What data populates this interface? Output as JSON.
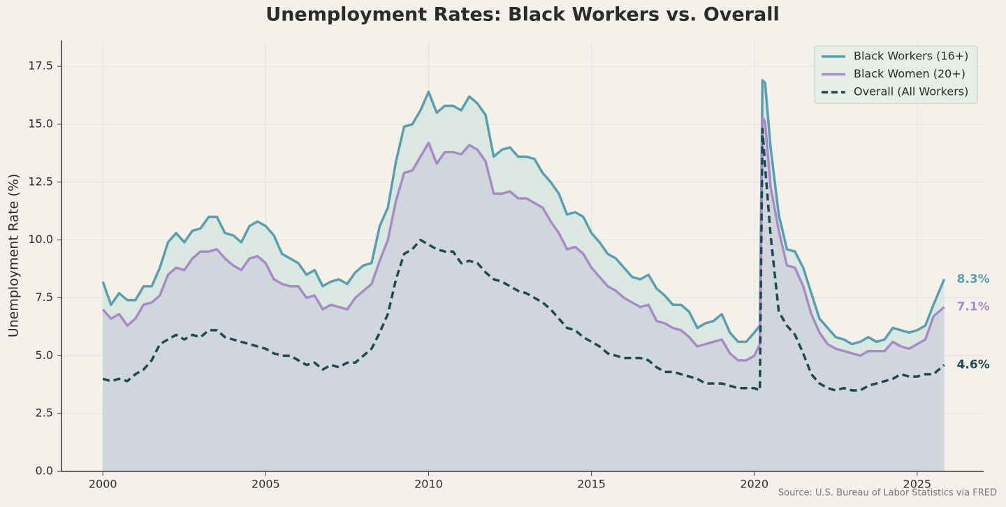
{
  "chart_data": {
    "type": "line",
    "title": "Unemployment Rates: Black Workers vs. Overall",
    "y_label": "Unemployment Rate (%)",
    "source": "Source: U.S. Bureau of Labor Statistics via FRED",
    "x": [
      2000,
      2000.25,
      2000.5,
      2000.75,
      2001,
      2001.25,
      2001.5,
      2001.75,
      2002,
      2002.25,
      2002.5,
      2002.75,
      2003,
      2003.25,
      2003.5,
      2003.75,
      2004,
      2004.25,
      2004.5,
      2004.75,
      2005,
      2005.25,
      2005.5,
      2005.75,
      2006,
      2006.25,
      2006.5,
      2006.75,
      2007,
      2007.25,
      2007.5,
      2007.75,
      2008,
      2008.25,
      2008.5,
      2008.75,
      2009,
      2009.25,
      2009.5,
      2009.75,
      2010,
      2010.25,
      2010.5,
      2010.75,
      2011,
      2011.25,
      2011.5,
      2011.75,
      2012,
      2012.25,
      2012.5,
      2012.75,
      2013,
      2013.25,
      2013.5,
      2013.75,
      2014,
      2014.25,
      2014.5,
      2014.75,
      2015,
      2015.25,
      2015.5,
      2015.75,
      2016,
      2016.25,
      2016.5,
      2016.75,
      2017,
      2017.25,
      2017.5,
      2017.75,
      2018,
      2018.25,
      2018.5,
      2018.75,
      2019,
      2019.25,
      2019.5,
      2019.75,
      2020,
      2020.17,
      2020.25,
      2020.33,
      2020.5,
      2020.75,
      2021,
      2021.25,
      2021.5,
      2021.75,
      2022,
      2022.25,
      2022.5,
      2022.75,
      2023,
      2023.25,
      2023.5,
      2023.75,
      2024,
      2024.25,
      2024.5,
      2024.75,
      2025,
      2025.25,
      2025.5,
      2025.83
    ],
    "series": [
      {
        "name": "Black Workers (16+)",
        "color": "#5a9fb0",
        "fill_color": "#dbe7e1",
        "linestyle": "solid",
        "end_label": "8.3%",
        "values": [
          8.2,
          7.2,
          7.7,
          7.4,
          7.4,
          8.0,
          8.0,
          8.8,
          9.9,
          10.3,
          9.9,
          10.4,
          10.5,
          11.0,
          11.0,
          10.3,
          10.2,
          9.9,
          10.6,
          10.8,
          10.6,
          10.2,
          9.4,
          9.2,
          9.0,
          8.5,
          8.7,
          8.0,
          8.2,
          8.3,
          8.1,
          8.6,
          8.9,
          9.0,
          10.6,
          11.4,
          13.4,
          14.9,
          15.0,
          15.6,
          16.4,
          15.5,
          15.8,
          15.8,
          15.6,
          16.2,
          15.9,
          15.4,
          13.6,
          13.9,
          14.0,
          13.6,
          13.6,
          13.5,
          12.9,
          12.5,
          12.0,
          11.1,
          11.2,
          11.0,
          10.3,
          9.9,
          9.4,
          9.2,
          8.8,
          8.4,
          8.3,
          8.5,
          7.9,
          7.6,
          7.2,
          7.2,
          6.9,
          6.2,
          6.4,
          6.5,
          6.8,
          6.0,
          5.6,
          5.6,
          6.0,
          6.3,
          16.9,
          16.8,
          14.0,
          11.1,
          9.6,
          9.5,
          8.8,
          7.7,
          6.6,
          6.2,
          5.8,
          5.7,
          5.5,
          5.6,
          5.8,
          5.6,
          5.7,
          6.2,
          6.1,
          6.0,
          6.1,
          6.3,
          7.2,
          8.3
        ]
      },
      {
        "name": "Black Women (20+)",
        "color": "#a98ac9",
        "fill_color": "#d1d5dc",
        "linestyle": "solid",
        "end_label": "7.1%",
        "values": [
          7.0,
          6.6,
          6.8,
          6.3,
          6.6,
          7.2,
          7.3,
          7.6,
          8.5,
          8.8,
          8.7,
          9.2,
          9.5,
          9.5,
          9.6,
          9.2,
          8.9,
          8.7,
          9.2,
          9.3,
          9.0,
          8.3,
          8.1,
          8.0,
          8.0,
          7.5,
          7.6,
          7.0,
          7.2,
          7.1,
          7.0,
          7.5,
          7.8,
          8.1,
          9.1,
          10.0,
          11.7,
          12.9,
          13.0,
          13.6,
          14.2,
          13.3,
          13.8,
          13.8,
          13.7,
          14.1,
          13.9,
          13.4,
          12.0,
          12.0,
          12.1,
          11.8,
          11.8,
          11.6,
          11.4,
          10.8,
          10.3,
          9.6,
          9.7,
          9.4,
          8.8,
          8.4,
          8.0,
          7.8,
          7.5,
          7.3,
          7.1,
          7.2,
          6.5,
          6.4,
          6.2,
          6.1,
          5.8,
          5.4,
          5.5,
          5.6,
          5.7,
          5.1,
          4.8,
          4.8,
          5.0,
          5.5,
          15.3,
          15.1,
          12.3,
          10.4,
          8.9,
          8.8,
          8.0,
          6.8,
          6.0,
          5.5,
          5.3,
          5.2,
          5.1,
          5.0,
          5.2,
          5.2,
          5.2,
          5.6,
          5.4,
          5.3,
          5.5,
          5.7,
          6.7,
          7.1
        ]
      },
      {
        "name": "Overall (All Workers)",
        "color": "#1b4a55",
        "linestyle": "dashed",
        "end_label": "4.6%",
        "values": [
          4.0,
          3.9,
          4.0,
          3.9,
          4.2,
          4.4,
          4.8,
          5.5,
          5.7,
          5.9,
          5.7,
          5.9,
          5.8,
          6.1,
          6.1,
          5.8,
          5.7,
          5.6,
          5.5,
          5.4,
          5.3,
          5.1,
          5.0,
          5.0,
          4.8,
          4.6,
          4.7,
          4.4,
          4.6,
          4.5,
          4.7,
          4.7,
          5.0,
          5.3,
          6.0,
          6.8,
          8.3,
          9.4,
          9.6,
          10.0,
          9.8,
          9.6,
          9.5,
          9.5,
          9.0,
          9.1,
          9.0,
          8.6,
          8.3,
          8.2,
          8.0,
          7.8,
          7.7,
          7.5,
          7.3,
          7.0,
          6.6,
          6.2,
          6.1,
          5.8,
          5.6,
          5.4,
          5.1,
          5.0,
          4.9,
          4.9,
          4.9,
          4.8,
          4.5,
          4.3,
          4.3,
          4.2,
          4.1,
          4.0,
          3.8,
          3.8,
          3.8,
          3.7,
          3.6,
          3.6,
          3.6,
          3.5,
          14.8,
          13.2,
          10.2,
          6.9,
          6.3,
          5.9,
          5.1,
          4.2,
          3.8,
          3.6,
          3.5,
          3.6,
          3.5,
          3.5,
          3.7,
          3.8,
          3.9,
          4.0,
          4.2,
          4.1,
          4.1,
          4.2,
          4.2,
          4.6
        ]
      }
    ],
    "xlim": [
      1998.73,
      2027.04
    ],
    "xticks": [
      2000,
      2005,
      2010,
      2015,
      2020,
      2025
    ],
    "ylim": [
      0,
      18.62
    ],
    "yticks": [
      {
        "value": 0,
        "label": "0.0"
      },
      {
        "value": 2.5,
        "label": "2.5"
      },
      {
        "value": 5,
        "label": "5.0"
      },
      {
        "value": 7.5,
        "label": "7.5"
      },
      {
        "value": 10,
        "label": "10.0"
      },
      {
        "value": 12.5,
        "label": "12.5"
      },
      {
        "value": 15,
        "label": "15.0"
      },
      {
        "value": 17.5,
        "label": "17.5"
      }
    ],
    "grid": true,
    "legend": "upper right"
  }
}
